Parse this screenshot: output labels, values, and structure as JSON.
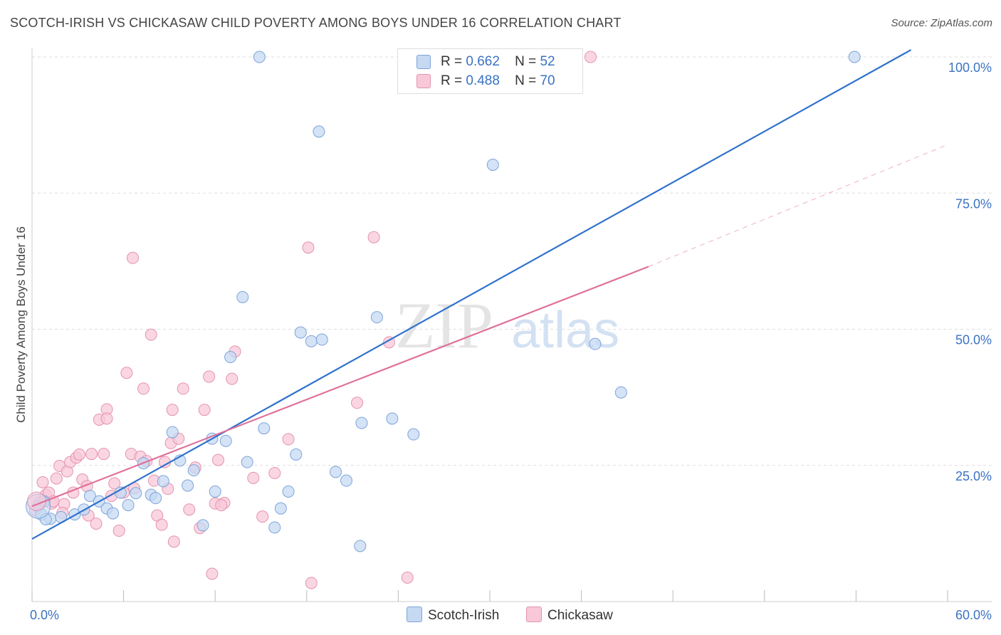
{
  "title": "SCOTCH-IRISH VS CHICKASAW CHILD POVERTY AMONG BOYS UNDER 16 CORRELATION CHART",
  "source": "Source: ZipAtlas.com",
  "watermark": {
    "zip": "ZIP",
    "atlas": "atlas"
  },
  "legend": {
    "rows": [
      {
        "r_label": "R =",
        "r_value": "0.662",
        "n_label": "N =",
        "n_value": "52"
      },
      {
        "r_label": "R =",
        "r_value": "0.488",
        "n_label": "N =",
        "n_value": "70"
      }
    ]
  },
  "colors": {
    "blue_fill": "#c5d9f3",
    "blue_stroke": "#7ea4d9",
    "blue_line": "#2f72cc",
    "pink_fill": "#f8c8d8",
    "pink_stroke": "#e493ae",
    "pink_line": "#e0709a",
    "grid": "#dddddd",
    "axis_text": "#3b72c4"
  },
  "chart_data": {
    "type": "scatter",
    "title": "SCOTCH-IRISH VS CHICKASAW CHILD POVERTY AMONG BOYS UNDER 16 CORRELATION CHART",
    "xlabel": "",
    "ylabel": "Child Poverty Among Boys Under 16",
    "xlim": [
      0,
      60
    ],
    "ylim": [
      0,
      100
    ],
    "x_tick_labels": [
      "0.0%",
      "60.0%"
    ],
    "y_tick_labels": [
      "25.0%",
      "50.0%",
      "75.0%",
      "100.0%"
    ],
    "y_ticks": [
      25,
      50,
      75,
      100
    ],
    "grid": true,
    "legend_position": "top-center",
    "series": [
      {
        "name": "Scotch-Irish",
        "r": 0.662,
        "n": 52,
        "trend": {
          "x": [
            0,
            57.6
          ],
          "y": [
            11.5,
            101.3
          ],
          "style": "solid"
        },
        "points": [
          [
            0.4,
            17.5
          ],
          [
            0.8,
            18.4
          ],
          [
            0.6,
            16.0
          ],
          [
            1.2,
            15.2
          ],
          [
            1.9,
            15.5
          ],
          [
            2.8,
            16.0
          ],
          [
            3.4,
            16.9
          ],
          [
            3.8,
            19.4
          ],
          [
            4.4,
            18.4
          ],
          [
            4.9,
            17.1
          ],
          [
            5.3,
            16.2
          ],
          [
            5.8,
            20.0
          ],
          [
            6.3,
            17.7
          ],
          [
            6.8,
            19.9
          ],
          [
            7.3,
            25.4
          ],
          [
            7.8,
            19.6
          ],
          [
            8.1,
            19.0
          ],
          [
            8.6,
            22.1
          ],
          [
            9.2,
            31.1
          ],
          [
            9.7,
            25.9
          ],
          [
            10.2,
            21.3
          ],
          [
            10.6,
            24.1
          ],
          [
            11.2,
            14.0
          ],
          [
            11.8,
            29.9
          ],
          [
            12.0,
            20.2
          ],
          [
            12.7,
            29.5
          ],
          [
            13.0,
            44.9
          ],
          [
            13.8,
            55.9
          ],
          [
            14.1,
            25.6
          ],
          [
            14.9,
            100.0
          ],
          [
            15.2,
            31.8
          ],
          [
            15.9,
            13.6
          ],
          [
            16.3,
            17.1
          ],
          [
            16.8,
            20.2
          ],
          [
            17.3,
            27.0
          ],
          [
            17.6,
            49.4
          ],
          [
            18.3,
            47.8
          ],
          [
            18.8,
            86.3
          ],
          [
            19.0,
            48.1
          ],
          [
            19.9,
            23.8
          ],
          [
            20.6,
            22.2
          ],
          [
            21.5,
            10.2
          ],
          [
            21.6,
            32.8
          ],
          [
            22.6,
            52.2
          ],
          [
            23.6,
            33.6
          ],
          [
            25.0,
            30.7
          ],
          [
            25.6,
            100.0
          ],
          [
            30.2,
            80.2
          ],
          [
            36.9,
            47.3
          ],
          [
            38.6,
            38.4
          ],
          [
            53.9,
            100.0
          ],
          [
            0.9,
            15.1
          ]
        ]
      },
      {
        "name": "Chickasaw",
        "r": 0.488,
        "n": 70,
        "trend": {
          "x": [
            0,
            40.4
          ],
          "y": [
            17.5,
            61.5
          ],
          "style": "solid",
          "extension": {
            "x": [
              40.4,
              60
            ],
            "y": [
              61.5,
              83.9
            ],
            "style": "dashed"
          }
        },
        "points": [
          [
            0.2,
            16.8
          ],
          [
            0.5,
            18.2
          ],
          [
            0.7,
            21.9
          ],
          [
            0.9,
            19.6
          ],
          [
            1.1,
            20.0
          ],
          [
            1.3,
            18.0
          ],
          [
            1.6,
            22.6
          ],
          [
            1.8,
            24.9
          ],
          [
            2.1,
            17.9
          ],
          [
            2.3,
            23.9
          ],
          [
            2.5,
            25.6
          ],
          [
            2.7,
            20.0
          ],
          [
            2.9,
            26.4
          ],
          [
            3.1,
            27.0
          ],
          [
            3.3,
            22.4
          ],
          [
            3.6,
            21.2
          ],
          [
            3.9,
            27.1
          ],
          [
            4.2,
            14.3
          ],
          [
            4.4,
            33.4
          ],
          [
            4.7,
            27.1
          ],
          [
            4.9,
            35.3
          ],
          [
            5.2,
            19.4
          ],
          [
            5.4,
            21.7
          ],
          [
            5.7,
            13.0
          ],
          [
            6.0,
            20.0
          ],
          [
            6.2,
            42.0
          ],
          [
            6.5,
            27.1
          ],
          [
            6.7,
            20.8
          ],
          [
            6.6,
            63.1
          ],
          [
            7.1,
            26.6
          ],
          [
            7.3,
            39.1
          ],
          [
            7.5,
            25.8
          ],
          [
            7.8,
            49.0
          ],
          [
            8.0,
            22.2
          ],
          [
            8.2,
            15.8
          ],
          [
            8.5,
            14.1
          ],
          [
            8.7,
            25.6
          ],
          [
            9.1,
            29.1
          ],
          [
            9.2,
            35.2
          ],
          [
            9.3,
            11.0
          ],
          [
            9.6,
            29.9
          ],
          [
            9.9,
            39.1
          ],
          [
            10.3,
            16.9
          ],
          [
            10.7,
            24.6
          ],
          [
            11.0,
            13.5
          ],
          [
            11.3,
            35.2
          ],
          [
            11.6,
            41.3
          ],
          [
            11.8,
            5.1
          ],
          [
            12.0,
            18.0
          ],
          [
            12.2,
            26.0
          ],
          [
            12.6,
            18.1
          ],
          [
            13.1,
            40.9
          ],
          [
            13.3,
            45.9
          ],
          [
            14.5,
            22.7
          ],
          [
            15.1,
            15.6
          ],
          [
            15.9,
            23.6
          ],
          [
            16.8,
            29.8
          ],
          [
            18.1,
            65.0
          ],
          [
            18.3,
            3.4
          ],
          [
            21.3,
            36.5
          ],
          [
            22.4,
            66.9
          ],
          [
            23.4,
            47.6
          ],
          [
            24.6,
            4.4
          ],
          [
            36.6,
            100.0
          ],
          [
            4.9,
            33.6
          ],
          [
            1.4,
            18.4
          ],
          [
            2.0,
            16.3
          ],
          [
            8.9,
            20.7
          ],
          [
            3.7,
            15.8
          ],
          [
            12.4,
            17.7
          ]
        ]
      }
    ]
  },
  "bottom_legend": {
    "items": [
      "Scotch-Irish",
      "Chickasaw"
    ]
  }
}
